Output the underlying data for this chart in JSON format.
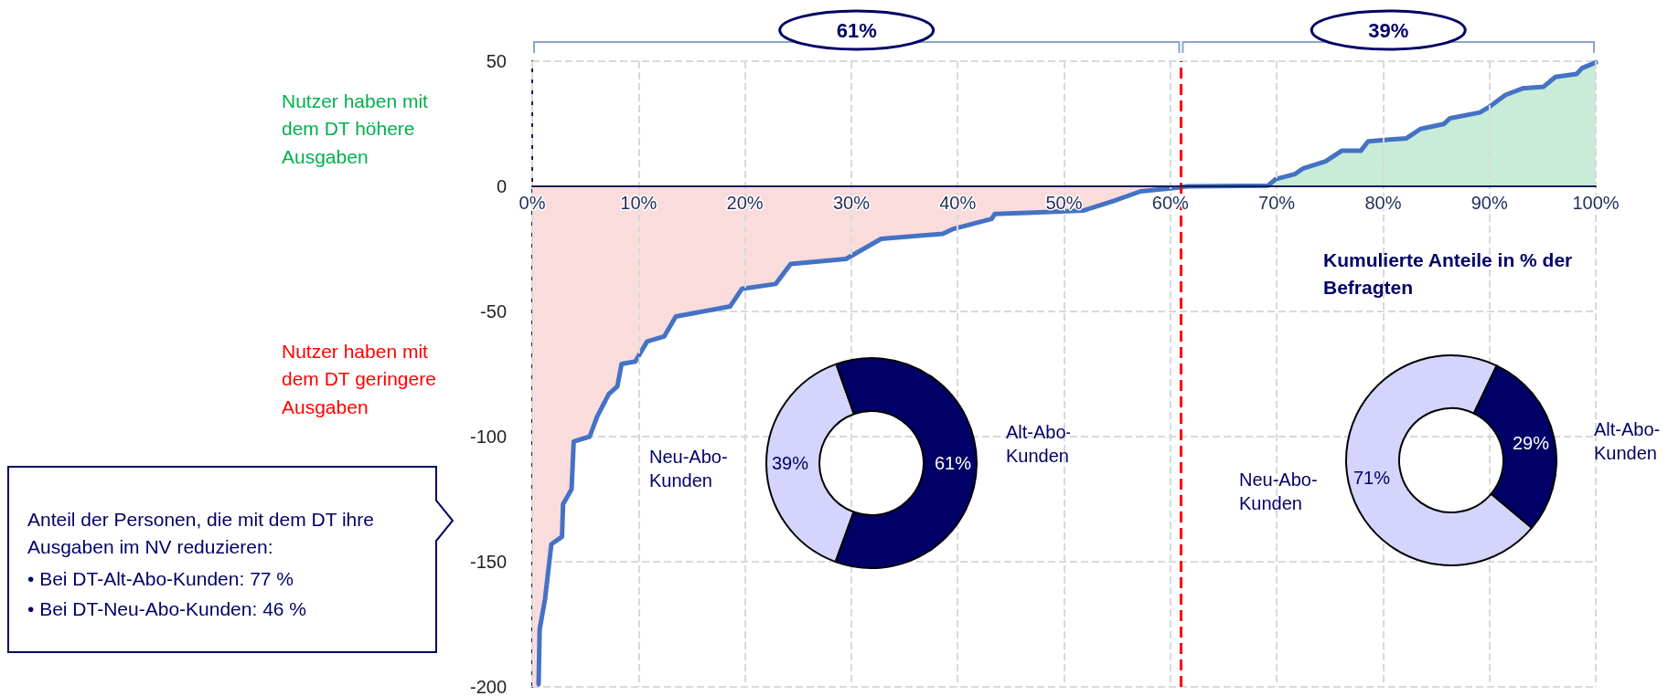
{
  "chart_data": [
    {
      "type": "line",
      "xlabel": "Kumulierte Anteile in % der Befragten",
      "marker": "none",
      "line_style": "solid",
      "grid": true,
      "xlim": [
        0,
        100
      ],
      "xticks": [
        {
          "value": 0,
          "label": "0%"
        },
        {
          "value": 10,
          "label": "10%"
        },
        {
          "value": 20,
          "label": "20%"
        },
        {
          "value": 30,
          "label": "30%"
        },
        {
          "value": 40,
          "label": "40%"
        },
        {
          "value": 50,
          "label": "50%"
        },
        {
          "value": 60,
          "label": "60%"
        },
        {
          "value": 70,
          "label": "70%"
        },
        {
          "value": 80,
          "label": "80%"
        },
        {
          "value": 90,
          "label": "90%"
        },
        {
          "value": 100,
          "label": "100%"
        }
      ],
      "ylim": [
        -200,
        50
      ],
      "yticks": [
        -200,
        -150,
        -100,
        -50,
        0,
        50
      ],
      "series": [
        {
          "type": "area",
          "color": "#fbdcdc",
          "x": [
            0,
            0.6,
            0.7,
            1.2,
            1.8,
            2.8,
            2.9,
            3.7,
            3.9,
            5.4,
            6.1,
            7.2,
            8.0,
            8.4,
            9.7,
            10.8,
            12.4,
            13.5,
            18.6,
            19.7,
            22.9,
            24.3,
            29.5,
            32.8,
            38.6,
            39.6,
            43.2,
            43.5,
            47.1,
            51.8,
            54.7,
            57.2,
            60.8,
            61.6
          ],
          "values": [
            -200,
            -199,
            -177,
            -165,
            -143,
            -140,
            -127,
            -121,
            -102,
            -100,
            -92,
            -83,
            -80,
            -71,
            -70,
            -62,
            -60,
            -52,
            -48,
            -41,
            -39,
            -31,
            -29,
            -21,
            -19,
            -17,
            -13,
            -11,
            -10.5,
            -9.7,
            -5.8,
            -2,
            -0.5,
            0
          ]
        },
        {
          "type": "area",
          "color": "#c8ecd8",
          "x": [
            61.6,
            69.2,
            69.9,
            71.7,
            72.5,
            74.6,
            76.1,
            77.9,
            78.6,
            82.2,
            83.5,
            85.7,
            86.3,
            89.1,
            89.9,
            91.5,
            93.1,
            95.1,
            96.2,
            98.2,
            98.7,
            100
          ],
          "values": [
            0,
            0.3,
            2.9,
            4.9,
            7.2,
            10,
            14.2,
            14.2,
            18,
            19.2,
            22.9,
            24.9,
            27.2,
            29.5,
            31.5,
            36.5,
            39.1,
            39.8,
            43.7,
            44.9,
            47.2,
            49.5
          ]
        },
        {
          "type": "line",
          "color": "#4472c4",
          "x": [
            0.6,
            0.7,
            1.2,
            1.8,
            2.8,
            2.9,
            3.7,
            3.9,
            5.4,
            6.1,
            7.2,
            8.0,
            8.4,
            9.7,
            10.8,
            12.4,
            13.5,
            18.6,
            19.7,
            22.9,
            24.3,
            29.5,
            32.8,
            38.6,
            39.6,
            43.2,
            43.5,
            47.1,
            51.8,
            54.7,
            57.2,
            60.8,
            61.6,
            69.2,
            69.9,
            71.7,
            72.5,
            74.6,
            76.1,
            77.9,
            78.6,
            82.2,
            83.5,
            85.7,
            86.3,
            89.1,
            89.9,
            91.5,
            93.1,
            95.1,
            96.2,
            98.2,
            98.7,
            100
          ],
          "values": [
            -199,
            -177,
            -165,
            -143,
            -140,
            -127,
            -121,
            -102,
            -100,
            -92,
            -83,
            -80,
            -71,
            -70,
            -62,
            -60,
            -52,
            -48,
            -41,
            -39,
            -31,
            -29,
            -21,
            -19,
            -17,
            -13,
            -11,
            -10.5,
            -9.7,
            -5.8,
            -2,
            -0.5,
            0,
            0.3,
            2.9,
            4.9,
            7.2,
            10,
            14.2,
            14.2,
            18,
            19.2,
            22.9,
            24.9,
            27.2,
            29.5,
            31.5,
            36.5,
            39.1,
            39.8,
            43.7,
            44.9,
            47.2,
            49.5
          ]
        }
      ],
      "ref_lines": [
        {
          "axis": "x",
          "value": 61,
          "color": "#ff0000",
          "line_style": "dashed"
        }
      ],
      "annotations": [
        "61%",
        "39%",
        "Nutzer haben mit dem DT höhere Ausgaben",
        "Nutzer haben mit dem DT geringere Ausgaben",
        "Anteil der Personen, die mit dem DT ihre Ausgaben im NV reduzieren:",
        "• Bei DT-Alt-Abo-Kunden: 77 %",
        "• Bei DT-Neu-Abo-Kunden: 46 %"
      ]
    },
    {
      "type": "donut",
      "categories": [
        "Neu-Abo-Kunden",
        "Alt-Abo-Kunden"
      ],
      "values": [
        39,
        61
      ],
      "colors": [
        "#d4d4fc",
        "#000066"
      ],
      "value_labels": [
        "39%",
        "61%"
      ]
    },
    {
      "type": "donut",
      "categories": [
        "Neu-Abo-Kunden",
        "Alt-Abo-Kunden"
      ],
      "values": [
        71,
        29
      ],
      "colors": [
        "#d4d4fc",
        "#000066"
      ],
      "value_labels": [
        "71%",
        "29%"
      ]
    }
  ]
}
